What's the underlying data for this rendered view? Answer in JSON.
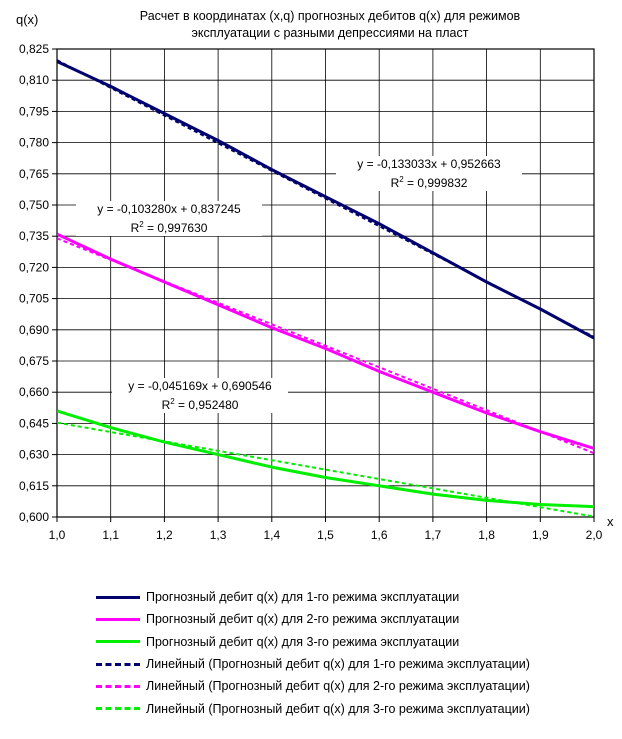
{
  "chart_data": {
    "type": "line",
    "title_line1": "Расчет  в координатах  (x,q)  прогнозных дебитов  q(x)  для  режимов",
    "title_line2": "эксплуатации  с  разными  депрессиями  на  пласт",
    "ylabel": "q(x)",
    "xlabel": "x",
    "xlim": [
      1.0,
      2.0
    ],
    "ylim": [
      0.6,
      0.825
    ],
    "x_ticks": [
      "1,0",
      "1,1",
      "1,2",
      "1,3",
      "1,4",
      "1,5",
      "1,6",
      "1,7",
      "1,8",
      "1,9",
      "2,0"
    ],
    "y_ticks": [
      "0,825",
      "0,810",
      "0,795",
      "0,780",
      "0,765",
      "0,750",
      "0,735",
      "0,720",
      "0,705",
      "0,690",
      "0,675",
      "0,660",
      "0,645",
      "0,630",
      "0,615",
      "0,600"
    ],
    "series": [
      {
        "name": "Прогнозный дебит q(x) для 1-го режима эксплуатации",
        "color": "#00006e",
        "x": [
          1.0,
          1.1,
          1.2,
          1.3,
          1.4,
          1.5,
          1.6,
          1.7,
          1.8,
          1.9,
          2.0
        ],
        "y": [
          0.819,
          0.807,
          0.794,
          0.781,
          0.767,
          0.754,
          0.741,
          0.727,
          0.713,
          0.7,
          0.686
        ]
      },
      {
        "name": "Прогнозный дебит q(x) для 2-го режима эксплуатации",
        "color": "#ff00ff",
        "x": [
          1.0,
          1.1,
          1.2,
          1.3,
          1.4,
          1.5,
          1.6,
          1.7,
          1.8,
          1.9,
          2.0
        ],
        "y": [
          0.736,
          0.724,
          0.713,
          0.702,
          0.691,
          0.681,
          0.67,
          0.66,
          0.65,
          0.641,
          0.633
        ]
      },
      {
        "name": "Прогнозный дебит q(x) для 3-го режима эксплуатации",
        "color": "#00ee00",
        "x": [
          1.0,
          1.1,
          1.2,
          1.3,
          1.4,
          1.5,
          1.6,
          1.7,
          1.8,
          1.9,
          2.0
        ],
        "y": [
          0.651,
          0.643,
          0.636,
          0.63,
          0.624,
          0.619,
          0.615,
          0.611,
          0.608,
          0.606,
          0.605
        ]
      }
    ],
    "trendlines": [
      {
        "name": "Линейный (Прогнозный дебит q(x) для 1-го режима эксплуатации)",
        "color": "#00006e",
        "slope": -0.133033,
        "intercept": 0.952663,
        "equation": "y = -0,133033x + 0,952663",
        "r2_label": "R",
        "r2_value": " = 0,999832"
      },
      {
        "name": "Линейный (Прогнозный дебит q(x) для 2-го режима эксплуатации)",
        "color": "#ff00ff",
        "slope": -0.10328,
        "intercept": 0.837245,
        "equation": "y = -0,103280x + 0,837245",
        "r2_label": "R",
        "r2_value": " = 0,997630"
      },
      {
        "name": "Линейный (Прогнозный дебит q(x) для 3-го режима эксплуатации)",
        "color": "#00ee00",
        "slope": -0.045169,
        "intercept": 0.690546,
        "equation": "y = -0,045169x + 0,690546",
        "r2_label": "R",
        "r2_value": " = 0,952480"
      }
    ],
    "grid": true,
    "legend_position": "bottom"
  }
}
